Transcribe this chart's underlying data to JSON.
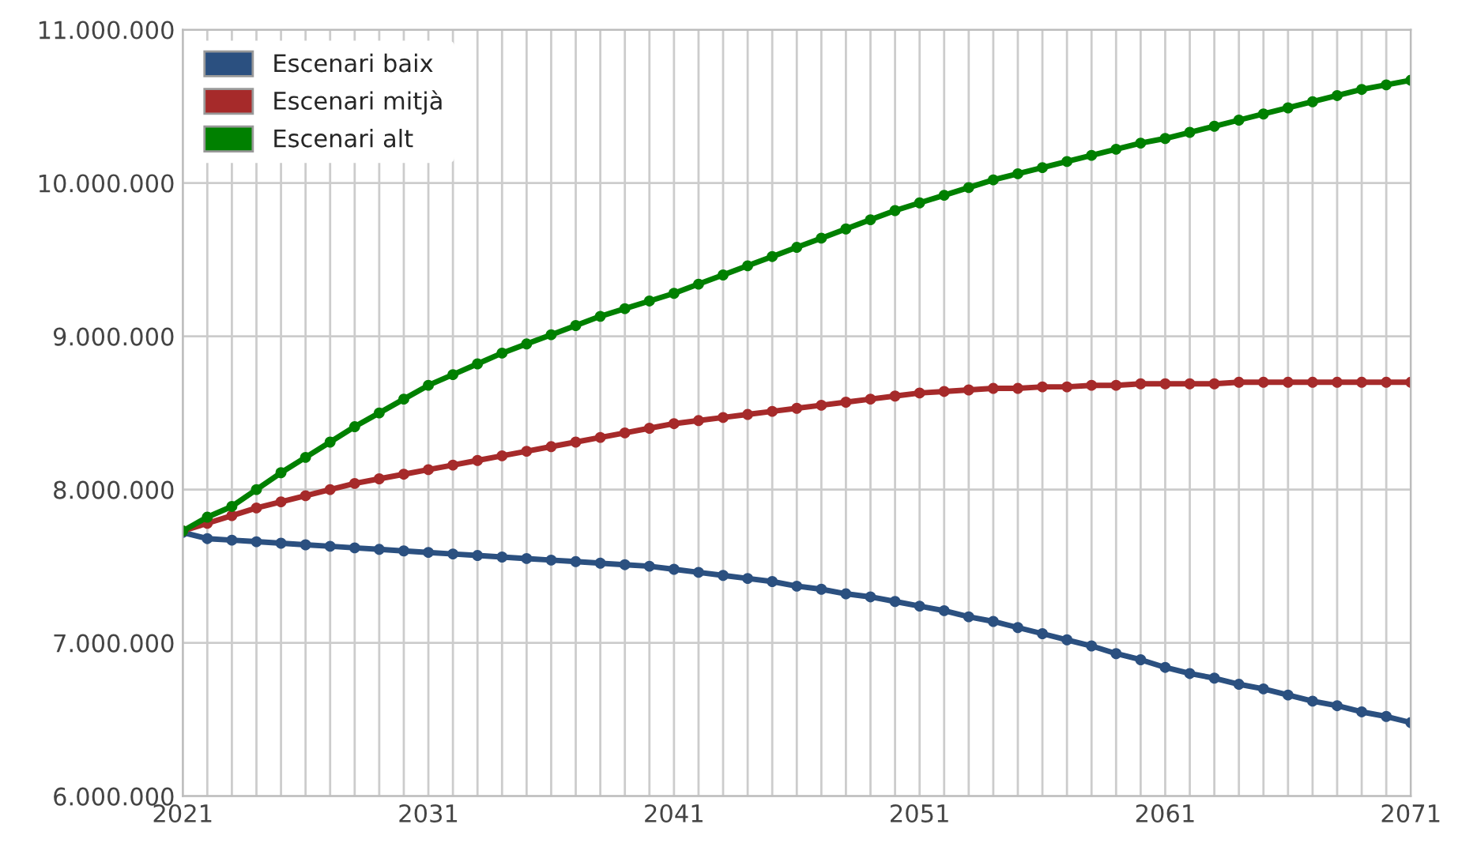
{
  "chart_data": {
    "type": "line",
    "x": [
      2021,
      2022,
      2023,
      2024,
      2025,
      2026,
      2027,
      2028,
      2029,
      2030,
      2031,
      2032,
      2033,
      2034,
      2035,
      2036,
      2037,
      2038,
      2039,
      2040,
      2041,
      2042,
      2043,
      2044,
      2045,
      2046,
      2047,
      2048,
      2049,
      2050,
      2051,
      2052,
      2053,
      2054,
      2055,
      2056,
      2057,
      2058,
      2059,
      2060,
      2061,
      2062,
      2063,
      2064,
      2065,
      2066,
      2067,
      2068,
      2069,
      2070,
      2071
    ],
    "series": [
      {
        "name": "Escenari baix",
        "color": "#2b5080",
        "values": [
          7720000,
          7680000,
          7670000,
          7660000,
          7650000,
          7640000,
          7630000,
          7620000,
          7610000,
          7600000,
          7590000,
          7580000,
          7570000,
          7560000,
          7550000,
          7540000,
          7530000,
          7520000,
          7510000,
          7500000,
          7480000,
          7460000,
          7440000,
          7420000,
          7400000,
          7370000,
          7350000,
          7320000,
          7300000,
          7270000,
          7240000,
          7210000,
          7170000,
          7140000,
          7100000,
          7060000,
          7020000,
          6980000,
          6930000,
          6890000,
          6840000,
          6800000,
          6770000,
          6730000,
          6700000,
          6660000,
          6620000,
          6590000,
          6550000,
          6520000,
          6480000
        ]
      },
      {
        "name": "Escenari mitjà",
        "color": "#a62a2a",
        "values": [
          7730000,
          7780000,
          7830000,
          7880000,
          7920000,
          7960000,
          8000000,
          8040000,
          8070000,
          8100000,
          8130000,
          8160000,
          8190000,
          8220000,
          8250000,
          8280000,
          8310000,
          8340000,
          8370000,
          8400000,
          8430000,
          8450000,
          8470000,
          8490000,
          8510000,
          8530000,
          8550000,
          8570000,
          8590000,
          8610000,
          8630000,
          8640000,
          8650000,
          8660000,
          8660000,
          8670000,
          8670000,
          8680000,
          8680000,
          8690000,
          8690000,
          8690000,
          8690000,
          8700000,
          8700000,
          8700000,
          8700000,
          8700000,
          8700000,
          8700000,
          8700000
        ]
      },
      {
        "name": "Escenari alt",
        "color": "#008000",
        "values": [
          7730000,
          7820000,
          7890000,
          8000000,
          8110000,
          8210000,
          8310000,
          8410000,
          8500000,
          8590000,
          8680000,
          8750000,
          8820000,
          8890000,
          8950000,
          9010000,
          9070000,
          9130000,
          9180000,
          9230000,
          9280000,
          9340000,
          9400000,
          9460000,
          9520000,
          9580000,
          9640000,
          9700000,
          9760000,
          9820000,
          9870000,
          9920000,
          9970000,
          10020000,
          10060000,
          10100000,
          10140000,
          10180000,
          10220000,
          10260000,
          10290000,
          10330000,
          10370000,
          10410000,
          10450000,
          10490000,
          10530000,
          10570000,
          10610000,
          10640000,
          10670000
        ]
      }
    ],
    "xlim": [
      2021,
      2071
    ],
    "xticks": [
      2021,
      {
        "value": 2022,
        "label": null
      },
      {
        "value": 2023,
        "label": null
      },
      {
        "value": 2024,
        "label": null
      },
      {
        "value": 2025,
        "label": null
      },
      {
        "value": 2026,
        "label": null
      },
      {
        "value": 2027,
        "label": null
      },
      {
        "value": 2028,
        "label": null
      },
      {
        "value": 2029,
        "label": null
      },
      {
        "value": 2030,
        "label": null
      },
      2031,
      {
        "value": 2032,
        "label": null
      },
      {
        "value": 2033,
        "label": null
      },
      {
        "value": 2034,
        "label": null
      },
      {
        "value": 2035,
        "label": null
      },
      {
        "value": 2036,
        "label": null
      },
      {
        "value": 2037,
        "label": null
      },
      {
        "value": 2038,
        "label": null
      },
      {
        "value": 2039,
        "label": null
      },
      {
        "value": 2040,
        "label": null
      },
      2041,
      {
        "value": 2042,
        "label": null
      },
      {
        "value": 2043,
        "label": null
      },
      {
        "value": 2044,
        "label": null
      },
      {
        "value": 2045,
        "label": null
      },
      {
        "value": 2046,
        "label": null
      },
      {
        "value": 2047,
        "label": null
      },
      {
        "value": 2048,
        "label": null
      },
      {
        "value": 2049,
        "label": null
      },
      {
        "value": 2050,
        "label": null
      },
      2051,
      {
        "value": 2052,
        "label": null
      },
      {
        "value": 2053,
        "label": null
      },
      {
        "value": 2054,
        "label": null
      },
      {
        "value": 2055,
        "label": null
      },
      {
        "value": 2056,
        "label": null
      },
      {
        "value": 2057,
        "label": null
      },
      {
        "value": 2058,
        "label": null
      },
      {
        "value": 2059,
        "label": null
      },
      {
        "value": 2060,
        "label": null
      },
      2061,
      {
        "value": 2062,
        "label": null
      },
      {
        "value": 2063,
        "label": null
      },
      {
        "value": 2064,
        "label": null
      },
      {
        "value": 2065,
        "label": null
      },
      {
        "value": 2066,
        "label": null
      },
      {
        "value": 2067,
        "label": null
      },
      {
        "value": 2068,
        "label": null
      },
      {
        "value": 2069,
        "label": null
      },
      {
        "value": 2070,
        "label": null
      },
      2071
    ],
    "ylim": [
      6000000,
      11000000
    ],
    "yticks": [
      {
        "value": 6000000,
        "label": "6.000.000"
      },
      {
        "value": 7000000,
        "label": "7.000.000"
      },
      {
        "value": 8000000,
        "label": "8.000.000"
      },
      {
        "value": 9000000,
        "label": "9.000.000"
      },
      {
        "value": 10000000,
        "label": "10.000.000"
      },
      {
        "value": 11000000,
        "label": "11.000.000"
      }
    ],
    "grid": true,
    "legend": "top left",
    "marker": "circle",
    "line_style": "solid"
  }
}
